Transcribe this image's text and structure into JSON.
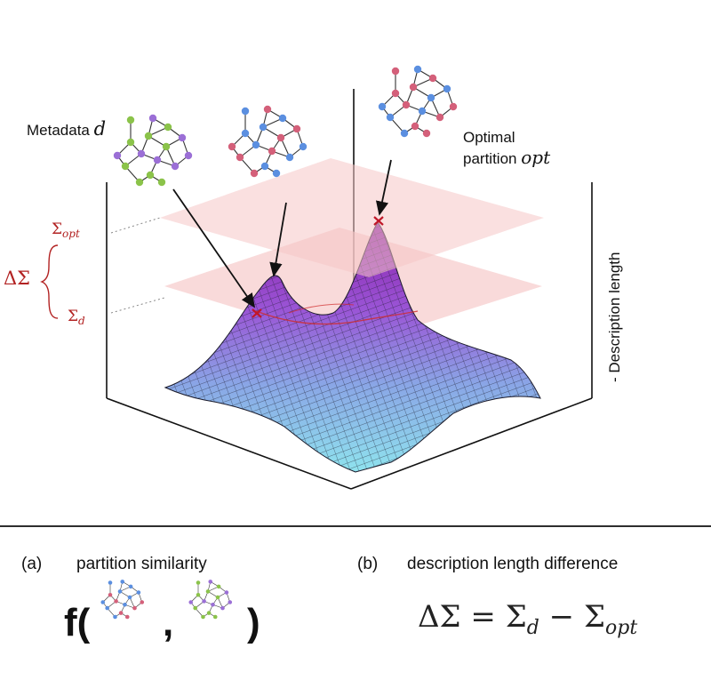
{
  "landscape": {
    "metadata_label": "Metadata",
    "metadata_symbol": "d",
    "optimal_label_line1": "Optimal",
    "optimal_label_line2": "partition",
    "optimal_symbol": "opt",
    "sigma_opt": "Σ",
    "sigma_opt_sub": "opt",
    "sigma_d": "Σ",
    "sigma_d_sub": "d",
    "delta_sigma": "ΔΣ",
    "axis_label": "- Description length"
  },
  "panel_a": {
    "tag": "(a)",
    "title": "partition similarity",
    "func_open": "f(",
    "comma": ",",
    "func_close": ")"
  },
  "panel_b": {
    "tag": "(b)",
    "title": "description length difference",
    "equation": "ΔΣ = Σ",
    "eq_sub_d": "d",
    "eq_minus": " − Σ",
    "eq_sub_opt": "opt"
  },
  "colors": {
    "red": "#b22222",
    "purple": "#8a2be2",
    "cyan": "#7fd6e6",
    "node_purple": "#9b6fd6",
    "node_green": "#8bc34a",
    "node_blue": "#5b8fe0",
    "node_pink": "#d4607a",
    "plane": "#f6c6c6"
  }
}
